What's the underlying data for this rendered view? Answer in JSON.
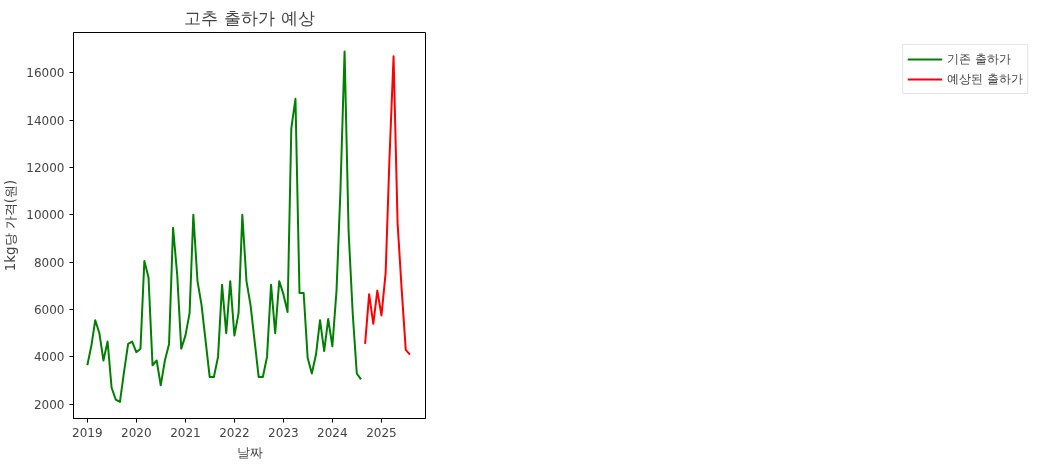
{
  "chart_data": {
    "type": "line",
    "title": "고추 출하가 예상",
    "xlabel": "날짜",
    "ylabel": "1kg당 가격(원)",
    "xlim": [
      "2018-09-20",
      "2025-11-25"
    ],
    "xticks": [
      "2019",
      "2020",
      "2021",
      "2022",
      "2023",
      "2024",
      "2025"
    ],
    "ylim": [
      1400,
      17700
    ],
    "yticks": [
      2000,
      4000,
      6000,
      8000,
      10000,
      12000,
      14000,
      16000
    ],
    "grid": false,
    "legend": "top right",
    "marker": "none",
    "line_style": "solid",
    "series": [
      {
        "name": "기존 출하가",
        "color": "#008000",
        "x": [
          "2019-01",
          "2019-02",
          "2019-03",
          "2019-04",
          "2019-05",
          "2019-06",
          "2019-07",
          "2019-08",
          "2019-09",
          "2019-10",
          "2019-11",
          "2019-12",
          "2020-01",
          "2020-02",
          "2020-03",
          "2020-04",
          "2020-05",
          "2020-06",
          "2020-07",
          "2020-08",
          "2020-09",
          "2020-10",
          "2020-11",
          "2020-12",
          "2021-01",
          "2021-02",
          "2021-03",
          "2021-04",
          "2021-05",
          "2021-06",
          "2021-07",
          "2021-08",
          "2021-09",
          "2021-10",
          "2021-11",
          "2021-12",
          "2022-01",
          "2022-02",
          "2022-03",
          "2022-04",
          "2022-05",
          "2022-06",
          "2022-07",
          "2022-08",
          "2022-09",
          "2022-10",
          "2022-11",
          "2022-12",
          "2023-01",
          "2023-02",
          "2023-03",
          "2023-04",
          "2023-05",
          "2023-06",
          "2023-07",
          "2023-08",
          "2023-09",
          "2023-10",
          "2023-11",
          "2023-12",
          "2024-01",
          "2024-02",
          "2024-03",
          "2024-04",
          "2024-05",
          "2024-06",
          "2024-07",
          "2024-08"
        ],
        "values": [
          3650,
          4500,
          5550,
          5000,
          3850,
          4650,
          2700,
          2200,
          2100,
          3350,
          4550,
          4650,
          4200,
          4350,
          8050,
          7350,
          3650,
          3850,
          2800,
          3850,
          4550,
          9450,
          7450,
          4350,
          4900,
          5850,
          10000,
          7200,
          6200,
          4650,
          3150,
          3150,
          4000,
          7050,
          5000,
          7200,
          4900,
          5850,
          10000,
          7200,
          6200,
          4650,
          3150,
          3150,
          4000,
          7050,
          5000,
          7200,
          6650,
          5900,
          13650,
          14900,
          6700,
          6700,
          3950,
          3300,
          4100,
          5550,
          4250,
          5600,
          4450,
          6800,
          11000,
          16900,
          9300,
          5800,
          3300,
          3050
        ]
      },
      {
        "name": "예상된 출하가",
        "color": "#ff0000",
        "x": [
          "2024-09",
          "2024-10",
          "2024-11",
          "2024-12",
          "2025-01",
          "2025-02",
          "2025-03",
          "2025-04",
          "2025-05",
          "2025-06",
          "2025-07",
          "2025-08"
        ],
        "values": [
          4550,
          6650,
          5400,
          6800,
          5750,
          7550,
          12300,
          16700,
          9650,
          6800,
          4300,
          4100
        ]
      }
    ]
  }
}
